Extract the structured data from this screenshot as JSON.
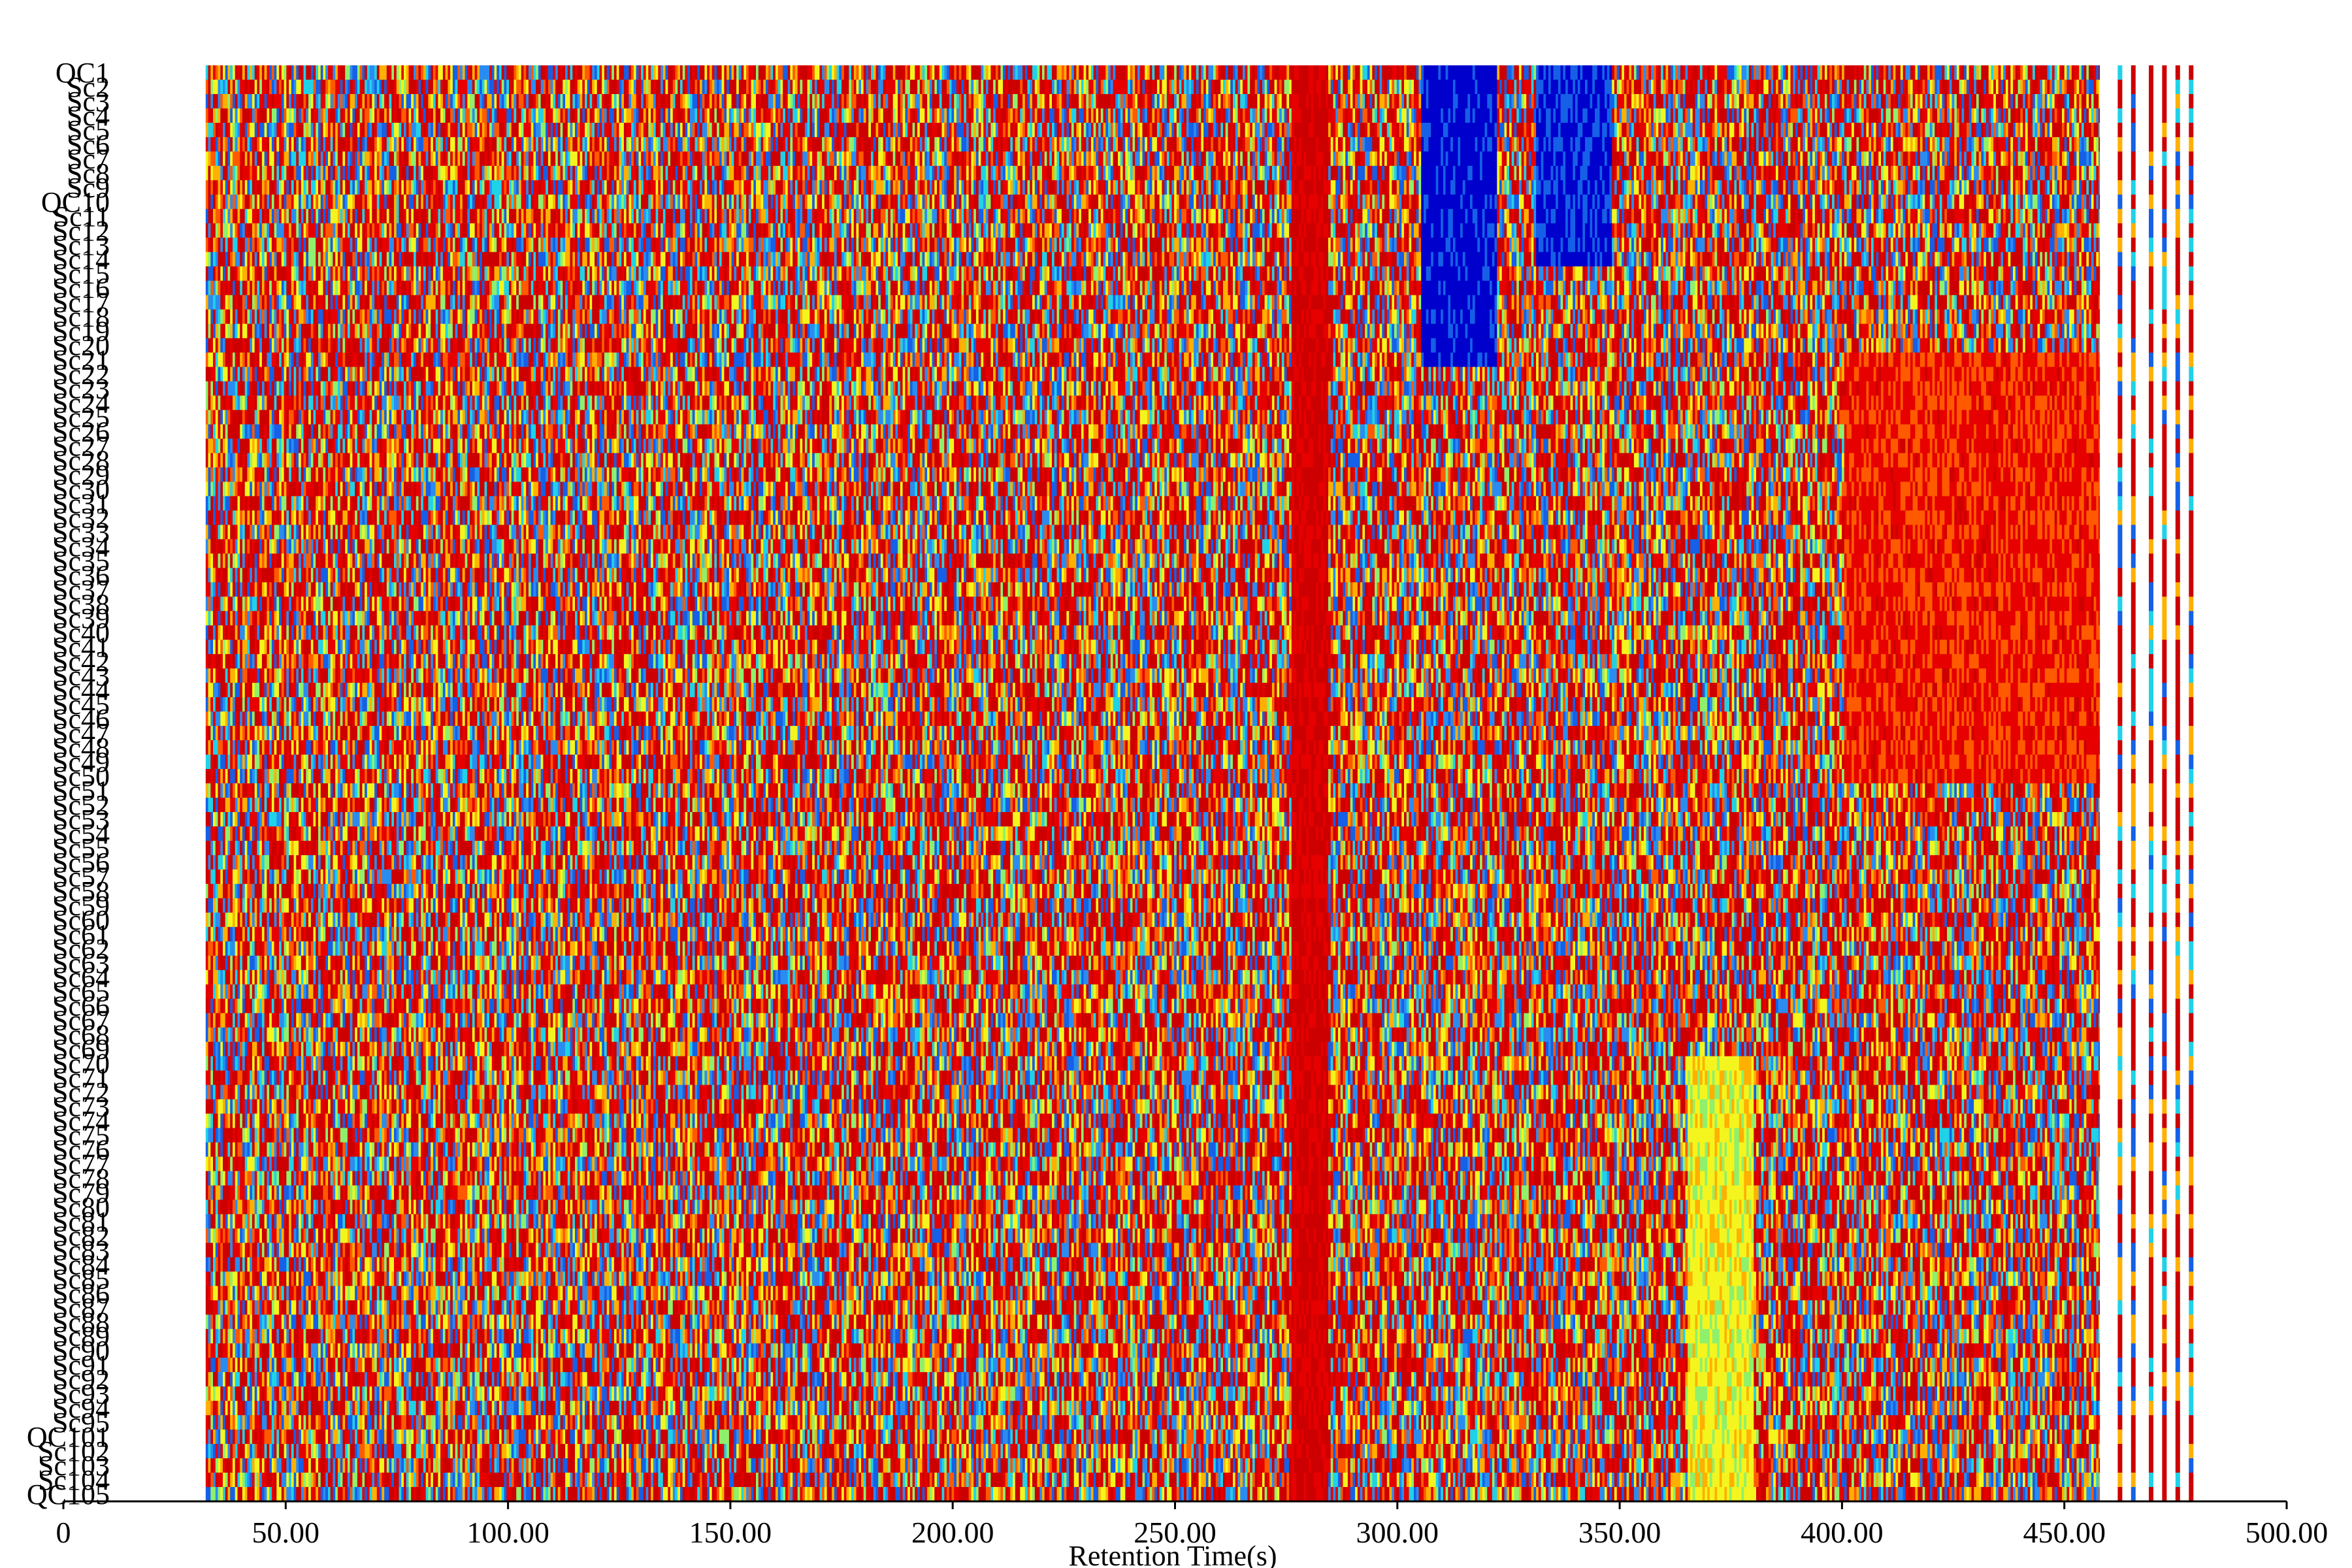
{
  "chart_data": {
    "type": "heatmap",
    "title": "",
    "xlabel": "Retention Time(s)",
    "ylabel": "",
    "xlim": [
      0,
      500
    ],
    "x_ticks": [
      "0",
      "50.00",
      "100.00",
      "150.00",
      "200.00",
      "250.00",
      "300.00",
      "350.00",
      "400.00",
      "450.00",
      "500.00"
    ],
    "data_x_range": [
      32,
      480
    ],
    "dense_data_end": 458,
    "late_signal_columns": [
      462,
      465,
      469,
      472,
      475,
      478
    ],
    "rows": [
      "QC1",
      "Sc2",
      "Sc3",
      "Sc4",
      "Sc5",
      "Sc6",
      "Sc7",
      "Sc8",
      "Sc9",
      "QC10",
      "Sc11",
      "Sc12",
      "Sc13",
      "Sc14",
      "Sc15",
      "Sc16",
      "Sc17",
      "Sc18",
      "Sc19",
      "Sc20",
      "Sc21",
      "Sc22",
      "Sc23",
      "Sc24",
      "Sc25",
      "Sc26",
      "Sc27",
      "Sc28",
      "Sc29",
      "Sc30",
      "Sc31",
      "Sc32",
      "Sc33",
      "Sc34",
      "Sc35",
      "Sc36",
      "Sc37",
      "Sc38",
      "Sc39",
      "Sc40",
      "Sc41",
      "Sc42",
      "Sc43",
      "Sc44",
      "Sc45",
      "Sc46",
      "Sc47",
      "Sc48",
      "Sc49",
      "Sc50",
      "Sc51",
      "Sc52",
      "Sc53",
      "Sc54",
      "Sc55",
      "Sc56",
      "Sc57",
      "Sc58",
      "Sc59",
      "Sc60",
      "Sc61",
      "Sc62",
      "Sc63",
      "Sc64",
      "Sc65",
      "Sc66",
      "Sc67",
      "Sc68",
      "Sc69",
      "Sc70",
      "Sc71",
      "Sc72",
      "Sc73",
      "Sc74",
      "Sc75",
      "Sc76",
      "Sc77",
      "Sc78",
      "Sc79",
      "Sc80",
      "Sc81",
      "Sc82",
      "Sc83",
      "Sc84",
      "Sc85",
      "Sc86",
      "Sc87",
      "Sc88",
      "Sc89",
      "Sc90",
      "Sc91",
      "Sc92",
      "Sc93",
      "Sc94",
      "Sc95",
      "QC101",
      "Sc102",
      "Sc103",
      "Sc104",
      "QC105"
    ],
    "colormap": [
      "#0000cc",
      "#1560e6",
      "#2b8cf0",
      "#1fd2e8",
      "#8ef06c",
      "#f4f51e",
      "#ffb000",
      "#ff5a00",
      "#e60000",
      "#cc0000"
    ],
    "features": [
      {
        "name": "low-intensity band",
        "x_range": [
          305,
          322
        ],
        "rows": [
          "QC1",
          "Sc21"
        ],
        "level": 0.05
      },
      {
        "name": "low-intensity band",
        "x_range": [
          331,
          348
        ],
        "rows": [
          "QC1",
          "Sc14"
        ],
        "level": 0.08
      },
      {
        "name": "high-intensity band",
        "x_range": [
          276,
          284
        ],
        "rows": [
          "QC1",
          "QC105"
        ],
        "level": 0.92
      },
      {
        "name": "elevated region",
        "x_range": [
          400,
          458
        ],
        "rows": [
          "Sc21",
          "Sc50"
        ],
        "level": 0.82
      },
      {
        "name": "mid-intensity region",
        "x_range": [
          365,
          380
        ],
        "rows": [
          "Sc70",
          "QC105"
        ],
        "level": 0.55
      }
    ]
  }
}
